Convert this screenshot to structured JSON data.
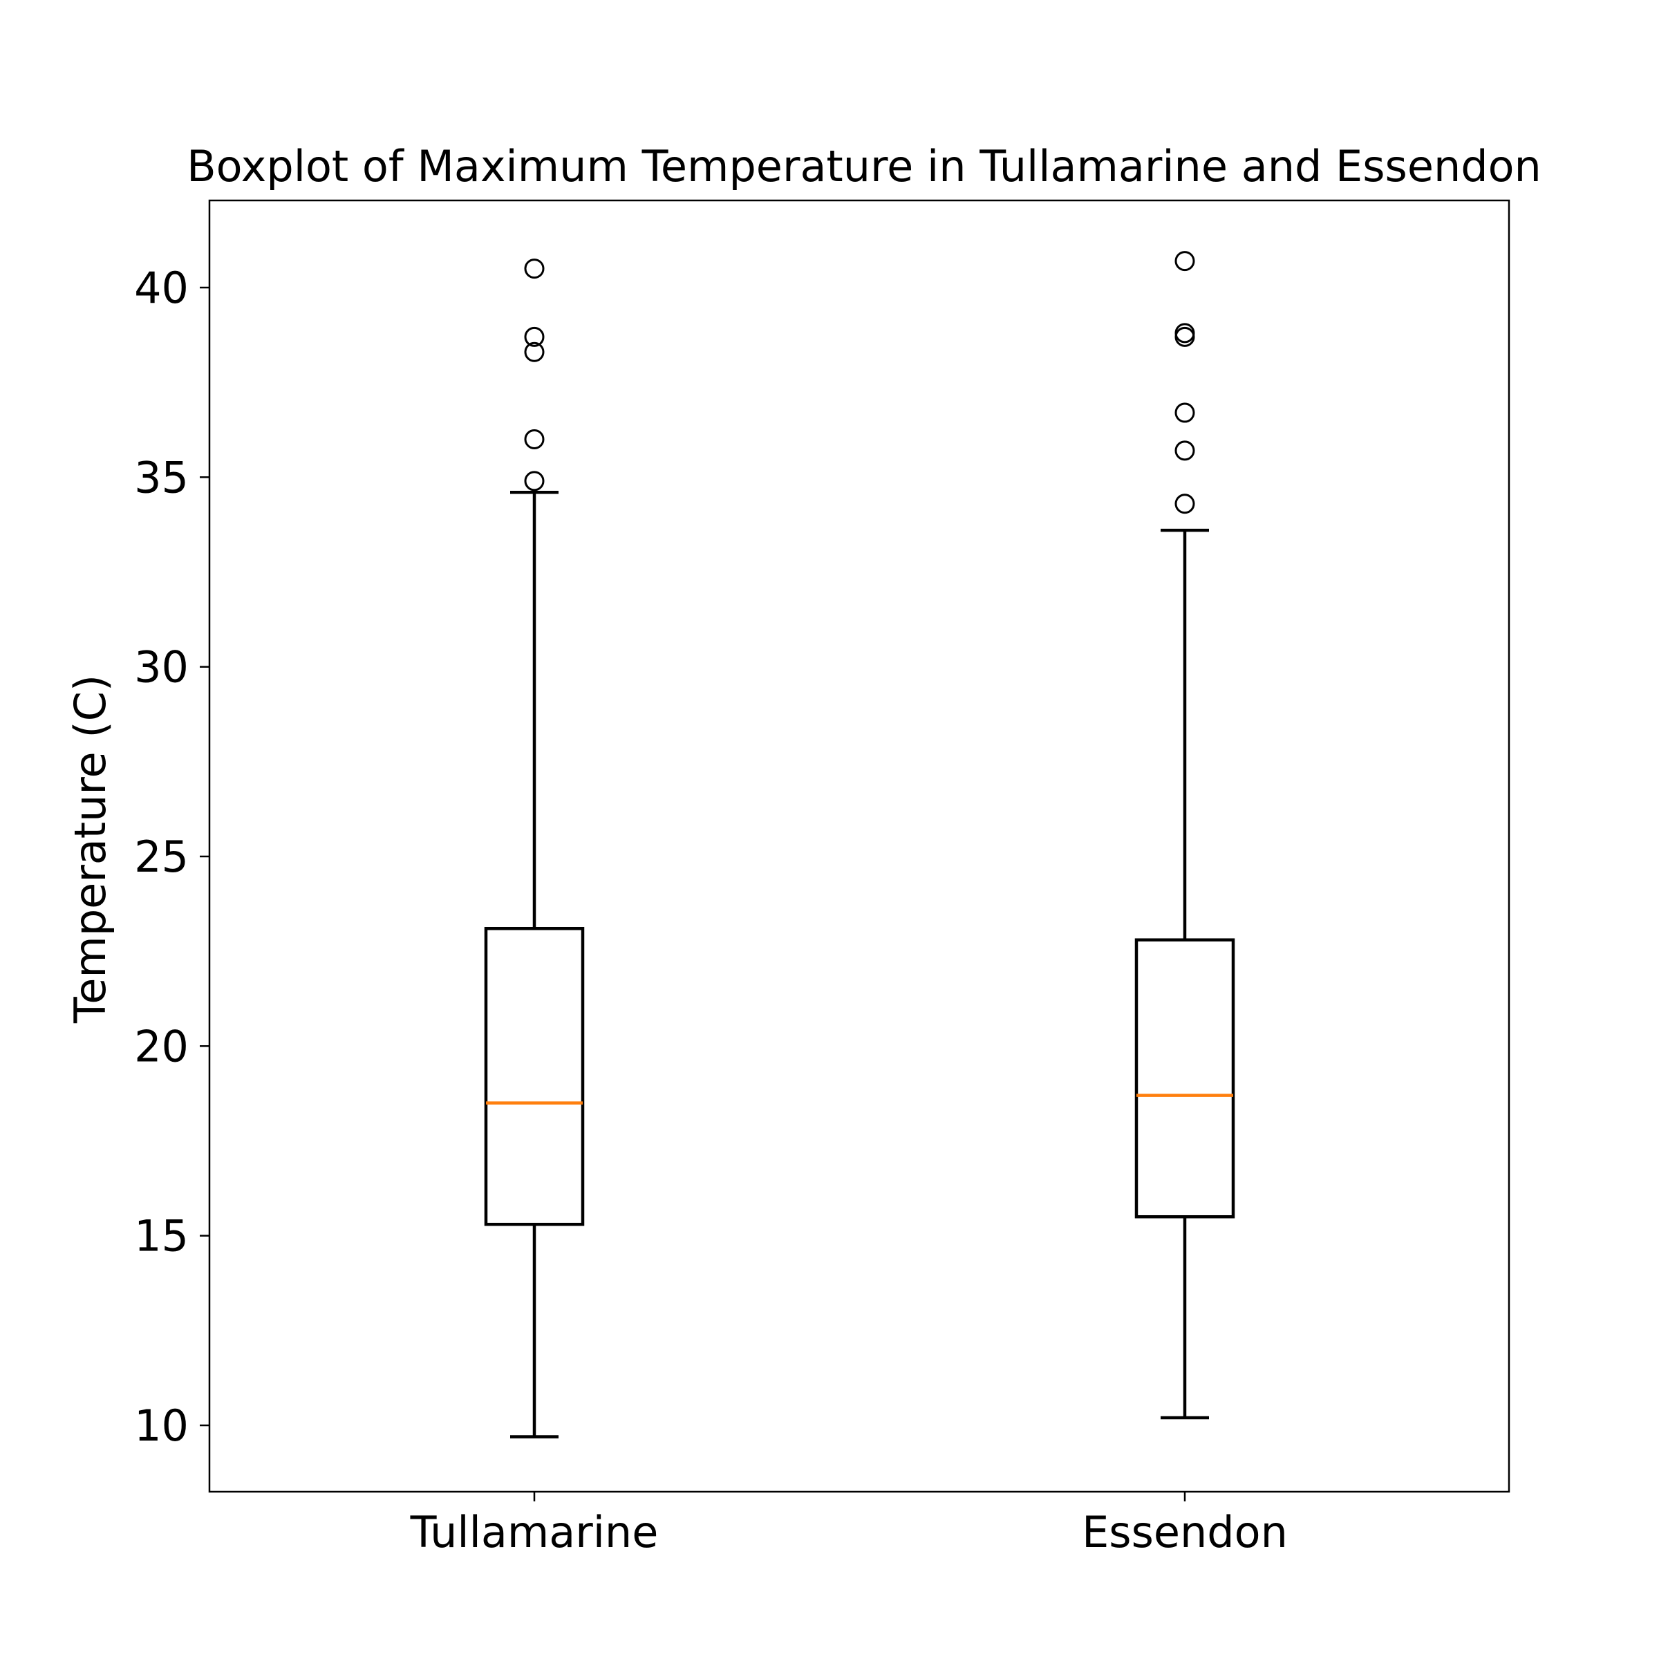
{
  "chart_data": {
    "type": "boxplot",
    "title": "Boxplot of Maximum Temperature in Tullamarine and Essendon",
    "xlabel": "",
    "ylabel": "Temperature (C)",
    "categories": [
      "Tullamarine",
      "Essendon"
    ],
    "ylim": [
      8.2,
      42.3
    ],
    "yticks": [
      10,
      15,
      20,
      25,
      30,
      35,
      40
    ],
    "grid": false,
    "legend": "none",
    "boxes": [
      {
        "category": "Tullamarine",
        "whisker_low": 9.7,
        "q1": 15.3,
        "median": 18.5,
        "q3": 23.1,
        "whisker_high": 34.6,
        "outliers": [
          34.9,
          36.0,
          38.3,
          38.7,
          40.5
        ]
      },
      {
        "category": "Essendon",
        "whisker_low": 10.2,
        "q1": 15.5,
        "median": 18.7,
        "q3": 22.8,
        "whisker_high": 33.6,
        "outliers": [
          34.3,
          35.7,
          36.7,
          38.7,
          38.8,
          40.7
        ]
      }
    ],
    "colors": {
      "box": "#000000",
      "median": "#ff7f0e",
      "outlier_edge": "#000000"
    }
  }
}
